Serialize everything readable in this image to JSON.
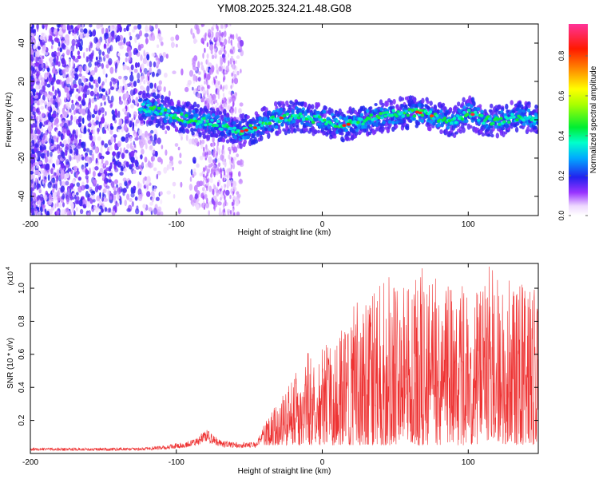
{
  "title": "YM08.2025.324.21.48.G08",
  "chart_data": [
    {
      "type": "heatmap",
      "name": "spectrogram",
      "xlabel": "Height of straight line (km)",
      "ylabel": "Frequency (Hz)",
      "xlim": [
        -200,
        148
      ],
      "ylim": [
        -50,
        50
      ],
      "xticks": [
        -200,
        -100,
        0,
        100
      ],
      "yticks": [
        -40,
        -20,
        0,
        20,
        40
      ],
      "colorbar": {
        "label": "Normalized spectral amplitude",
        "range": [
          0,
          0.96
        ],
        "ticks": [
          "0.0",
          "0.2",
          "0.4",
          "0.6",
          "0.8"
        ]
      },
      "noise_region_km": [
        -200,
        -55
      ],
      "signal_start_km": -125,
      "signal_track": {
        "x": [
          -125,
          -100,
          -75,
          -55,
          -45,
          -35,
          -20,
          0,
          15,
          30,
          50,
          65,
          75,
          90,
          100,
          110,
          120,
          135,
          148
        ],
        "freq": [
          7,
          2,
          -2,
          -6,
          -4,
          0,
          2,
          0,
          -3,
          0,
          3,
          4,
          2,
          -1,
          4,
          0,
          -1,
          2,
          0
        ]
      }
    },
    {
      "type": "line",
      "name": "snr",
      "xlabel": "Height of straight line (km)",
      "ylabel": "SNR (10 * v/v)",
      "y_scale_note": "(x10",
      "y_scale_exp": "4",
      "xlim": [
        -200,
        148
      ],
      "ylim": [
        0,
        1.15
      ],
      "xticks": [
        -200,
        -100,
        0,
        100
      ],
      "yticks": [
        "0.2",
        "0.4",
        "0.6",
        "0.8",
        "1.0"
      ],
      "color": "#ee3333",
      "envelope": {
        "x": [
          -200,
          -130,
          -110,
          -95,
          -85,
          -80,
          -75,
          -70,
          -60,
          -45,
          -40,
          -30,
          -20,
          -10,
          0,
          10,
          20,
          30,
          40,
          50,
          60,
          70,
          80,
          90,
          100,
          110,
          120,
          130,
          140,
          148
        ],
        "y": [
          0.03,
          0.03,
          0.04,
          0.06,
          0.09,
          0.13,
          0.1,
          0.07,
          0.06,
          0.06,
          0.16,
          0.33,
          0.48,
          0.62,
          0.7,
          0.68,
          0.85,
          0.92,
          1.05,
          1.0,
          1.05,
          1.12,
          1.0,
          1.02,
          1.0,
          1.05,
          1.12,
          1.05,
          1.03,
          0.95
        ]
      }
    }
  ]
}
